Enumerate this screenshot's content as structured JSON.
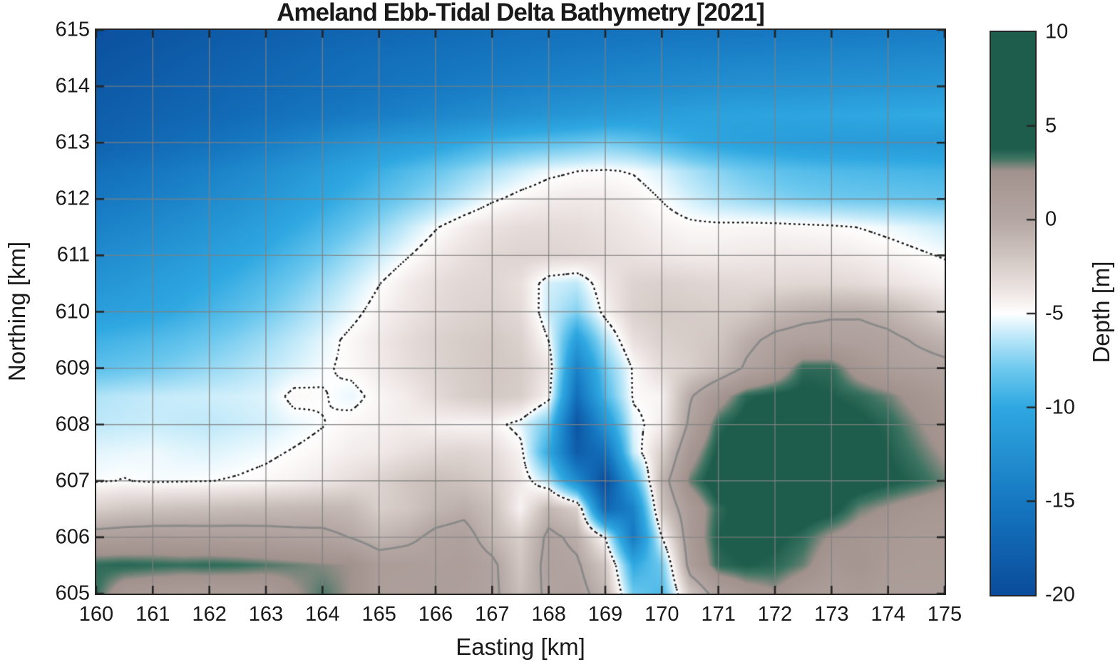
{
  "title": "Ameland Ebb-Tidal Delta Bathymetry [2021]",
  "axes": {
    "xlabel": "Easting [km]",
    "ylabel": "Northing [km]",
    "xlim": [
      160,
      175
    ],
    "ylim": [
      605,
      615
    ],
    "x_ticks": [
      160,
      161,
      162,
      163,
      164,
      165,
      166,
      167,
      168,
      169,
      170,
      171,
      172,
      173,
      174,
      175
    ],
    "y_ticks": [
      605,
      606,
      607,
      608,
      609,
      610,
      611,
      612,
      613,
      614,
      615
    ],
    "grid": "on"
  },
  "colorbar": {
    "label": "Depth [m]",
    "min": -20,
    "max": 10,
    "ticks": [
      10,
      5,
      0,
      -5,
      -10,
      -15,
      -20
    ]
  },
  "colors": {
    "background": "#ffffff",
    "grid_line": "#8a8a8a",
    "axis_line": "#242424",
    "deep_water": "#0a4c9b",
    "shallow_water": "#2fa8e1",
    "intertidal_flat": "#b4a7a3",
    "land_green": "#1e5d4b"
  },
  "chart_data": {
    "type": "heatmap",
    "title": "Ameland Ebb-Tidal Delta Bathymetry [2021]",
    "xlabel": "Easting [km]",
    "ylabel": "Northing [km]",
    "x_range_km": [
      160,
      175
    ],
    "y_range_km": [
      605,
      615
    ],
    "legend_position": "right-colorbar",
    "grid_x_start": 160,
    "grid_x_step": 0.5,
    "grid_y_start": 615,
    "grid_y_step": -0.5,
    "depth_grid_m": [
      [
        -19.5,
        -19.2,
        -19,
        -18.7,
        -18.4,
        -18.2,
        -17.9,
        -17.7,
        -17.4,
        -17.2,
        -17,
        -16.8,
        -16.6,
        -16.4,
        -16.2,
        -16,
        -15.9,
        -15.8,
        -15.7,
        -15.6,
        -15.5,
        -15.4,
        -15.3,
        -15.2,
        -15.1,
        -15,
        -14.9,
        -14.8,
        -14.7,
        -14.6,
        -14.5
      ],
      [
        -19,
        -18.7,
        -18.4,
        -18.1,
        -17.8,
        -17.5,
        -17.2,
        -16.9,
        -16.6,
        -16.3,
        -16,
        -15.8,
        -15.6,
        -15.4,
        -15.2,
        -15,
        -14.8,
        -14.6,
        -14.4,
        -14.2,
        -14,
        -13.9,
        -13.8,
        -13.7,
        -13.6,
        -13.5,
        -13.4,
        -13.3,
        -13.2,
        -13.1,
        -13
      ],
      [
        -18.5,
        -18.2,
        -17.9,
        -17.6,
        -17.3,
        -17,
        -16.7,
        -16.4,
        -16.1,
        -15.8,
        -15.5,
        -15.2,
        -14.9,
        -14.6,
        -14.3,
        -14,
        -13.7,
        -13.5,
        -13.3,
        -13.1,
        -12.9,
        -12.7,
        -12.5,
        -12.4,
        -12.3,
        -12.2,
        -12.1,
        -12,
        -11.9,
        -11.8,
        -11.7
      ],
      [
        -18,
        -17.7,
        -17.4,
        -17.1,
        -16.8,
        -16.4,
        -16,
        -15.6,
        -15.2,
        -14.8,
        -14.4,
        -14,
        -13.6,
        -13.2,
        -12.8,
        -12.4,
        -12,
        -11.7,
        -11.4,
        -11.2,
        -11,
        -10.8,
        -10.6,
        -10.5,
        -10.4,
        -10.3,
        -10.2,
        -10.1,
        -10,
        -9.9,
        -9.8
      ],
      [
        -17.5,
        -17.1,
        -16.7,
        -16.2,
        -15.7,
        -15.1,
        -14.5,
        -13.8,
        -13.1,
        -12.4,
        -11.7,
        -11.2,
        -10.7,
        -10,
        -9.3,
        -8.8,
        -8.5,
        -8.2,
        -7.8,
        -8.2,
        -9,
        -9.8,
        -10.4,
        -10.8,
        -11,
        -11.2,
        -11.3,
        -11.4,
        -11.4,
        -11.5,
        -11.5
      ],
      [
        -16,
        -15.6,
        -15.1,
        -14.6,
        -14,
        -13.4,
        -12.7,
        -12,
        -11.2,
        -10.4,
        -9.6,
        -8.9,
        -8.2,
        -7.4,
        -6.6,
        -5.9,
        -5.3,
        -5.02,
        -4.9,
        -5.1,
        -5.7,
        -6.6,
        -7.4,
        -8,
        -8.4,
        -8.7,
        -8.9,
        -9,
        -9.1,
        -9.2,
        -9.3
      ],
      [
        -15,
        -14.6,
        -14.2,
        -13.7,
        -13.1,
        -12.5,
        -11.8,
        -11,
        -10.2,
        -9.4,
        -8.6,
        -7.8,
        -7,
        -6.1,
        -5.2,
        -4.6,
        -4.2,
        -4,
        -4.1,
        -4.4,
        -5.05,
        -5.8,
        -6.5,
        -7,
        -7.4,
        -7.7,
        -7.9,
        -8,
        -8.1,
        -8.2,
        -8.3
      ],
      [
        -14,
        -13.6,
        -13.1,
        -12.6,
        -12,
        -11.4,
        -10.7,
        -9.9,
        -9.1,
        -8.2,
        -7.2,
        -6.1,
        -5.1,
        -4.2,
        -3.6,
        -3.3,
        -3.2,
        -3.3,
        -3.6,
        -4,
        -4.4,
        -4.7,
        -4.7,
        -4.6,
        -4.6,
        -4.7,
        -4.8,
        -5.03,
        -5.3,
        -5.6,
        -6
      ],
      [
        -13,
        -12.6,
        -12.1,
        -11.6,
        -11,
        -10.4,
        -9.7,
        -8.9,
        -8,
        -7,
        -6,
        -5.1,
        -4.2,
        -3.5,
        -3,
        -2.8,
        -2.8,
        -3,
        -3.3,
        -3.6,
        -3.9,
        -4.1,
        -4.1,
        -4,
        -3.9,
        -3.9,
        -4,
        -4.2,
        -4.5,
        -4.8,
        -5.1
      ],
      [
        -12,
        -11.6,
        -11.1,
        -10.6,
        -10,
        -9.4,
        -8.7,
        -7.9,
        -7,
        -6,
        -5.04,
        -4.1,
        -3.4,
        -3,
        -2.9,
        -3.5,
        -5.8,
        -6.2,
        -4,
        -2.8,
        -2.6,
        -2.8,
        -3,
        -3.1,
        -3.1,
        -3,
        -3,
        -3.2,
        -3.6,
        -4,
        -4.4
      ],
      [
        -11,
        -10.7,
        -10.3,
        -9.8,
        -9.2,
        -8.6,
        -7.9,
        -7.1,
        -6.2,
        -5.4,
        -4.5,
        -3.8,
        -3.2,
        -2.8,
        -2.6,
        -3.2,
        -6,
        -7.5,
        -4.5,
        -2.6,
        -2.2,
        -2.3,
        -2.4,
        -2.2,
        -1.2,
        -0.6,
        -0.3,
        -0.3,
        -0.8,
        -1.8,
        -3
      ],
      [
        -9.5,
        -9.2,
        -8.9,
        -8.5,
        -8,
        -7.5,
        -6.9,
        -6.2,
        -5.5,
        -4.7,
        -4,
        -3.3,
        -2.7,
        -2.3,
        -2.1,
        -2.6,
        -5.04,
        -11,
        -6.5,
        -3.5,
        -2.6,
        -2.3,
        -2,
        -0.5,
        0.5,
        0.8,
        0.8,
        0.8,
        0.5,
        -0.2,
        -0.8
      ],
      [
        -8.5,
        -8.2,
        -7.9,
        -7.5,
        -7.1,
        -6.7,
        -6.2,
        -5.7,
        -5.2,
        -4.7,
        -4.1,
        -3.4,
        -2.8,
        -2.3,
        -2,
        -2.3,
        -3.8,
        -14,
        -8,
        -4.8,
        -3.2,
        -2.5,
        -1.4,
        0.3,
        1.5,
        3.5,
        3.5,
        2,
        1.2,
        0.8,
        0.5
      ],
      [
        -6.5,
        -6.3,
        -6.1,
        -6,
        -5.9,
        -5.8,
        -5.6,
        -4.7,
        -4.9,
        -5.4,
        -4.6,
        -4.1,
        -3.2,
        -2.4,
        -2.1,
        -2.4,
        -4.5,
        -16,
        -9,
        -4.8,
        -4.5,
        -0.2,
        2,
        3.6,
        4,
        4,
        3.8,
        3.5,
        3,
        2.2,
        1.5
      ],
      [
        -6.2,
        -6.1,
        -6,
        -6.1,
        -6.2,
        -6,
        -5.8,
        -5.4,
        -5.05,
        -4.6,
        -4.4,
        -4.2,
        -4.4,
        -4.6,
        -4.5,
        -5.5,
        -8,
        -19,
        -12,
        -5.5,
        -4.2,
        0.5,
        3.5,
        4.2,
        4.5,
        4.5,
        4.3,
        4,
        3.6,
        2.8,
        2
      ],
      [
        -5.5,
        -5.4,
        -5.3,
        -5.5,
        -5.6,
        -5.4,
        -5.2,
        -4.9,
        -4.6,
        -4.2,
        -4,
        -3.5,
        -3,
        -2.8,
        -3.2,
        -4.5,
        -10,
        -18,
        -16,
        -6,
        -2.5,
        2,
        4,
        4.5,
        4.5,
        4.5,
        4.4,
        4.2,
        3.8,
        3.2,
        2.5
      ],
      [
        -5.1,
        -4.95,
        -5.15,
        -5.1,
        -5.02,
        -4.9,
        -4.7,
        -4.4,
        -4,
        -3.4,
        -2.8,
        -2,
        -1.5,
        -1.8,
        -2.5,
        -4,
        -6.5,
        -13,
        -20,
        -10,
        -1,
        3,
        4.5,
        4.6,
        4.6,
        4.6,
        4.5,
        4.4,
        4,
        3.6,
        3
      ],
      [
        -2.5,
        -2,
        -1.8,
        -1.6,
        -1.5,
        -1.3,
        -1.2,
        -1.1,
        -1,
        -1.2,
        -2.5,
        -2,
        -1,
        -0.5,
        -1.5,
        -4.5,
        -1,
        -2.5,
        -17,
        -14,
        -2,
        1.5,
        3.5,
        4.2,
        4.5,
        4.4,
        4.2,
        3,
        2.5,
        2,
        1.8
      ],
      [
        1,
        1.1,
        1.2,
        1.1,
        1,
        0.9,
        0.8,
        0.6,
        0.5,
        -0.05,
        -1,
        -0.5,
        0.5,
        0.8,
        -1,
        -2.5,
        0.5,
        -0.5,
        -5.04,
        -15,
        -5.04,
        1.5,
        3.8,
        4.2,
        4,
        3.5,
        2.5,
        2,
        1.8,
        1.5,
        1.5
      ],
      [
        3.5,
        3.6,
        3.5,
        3.4,
        3.5,
        3.4,
        3.2,
        3,
        2.8,
        2.6,
        1.2,
        1.2,
        1,
        1.2,
        0.5,
        -2,
        0.8,
        0.3,
        -2,
        -10,
        -8,
        1,
        3.5,
        3.8,
        3.6,
        3,
        1.8,
        2.2,
        1.5,
        1.4,
        1.4
      ],
      [
        3.4,
        1.8,
        1.5,
        1.3,
        1.2,
        1.3,
        1.5,
        2.5,
        3.2,
        2.6,
        1.2,
        1,
        1.2,
        1,
        0.5,
        -1.5,
        0.5,
        0.8,
        -1,
        -8,
        -9,
        -2,
        1,
        2,
        2.5,
        1.5,
        1.2,
        1.5,
        1.2,
        1.2,
        1.2
      ]
    ],
    "colormap_stops": [
      [
        -20,
        "#0a4c9b"
      ],
      [
        -15,
        "#1678c1"
      ],
      [
        -10,
        "#2fa8e1"
      ],
      [
        -8,
        "#6cc8ee"
      ],
      [
        -6,
        "#c8ecfa"
      ],
      [
        -5,
        "#ffffff"
      ],
      [
        -4,
        "#f0e9e7"
      ],
      [
        -2,
        "#d1c6c2"
      ],
      [
        0,
        "#b4a7a3"
      ],
      [
        2.6,
        "#a2928d"
      ],
      [
        3.3,
        "#3c7361"
      ],
      [
        3.8,
        "#1e5d4b"
      ],
      [
        10,
        "#1e5d4b"
      ]
    ],
    "contours": [
      {
        "level_m": -5,
        "line": "dotted",
        "color": "#141414"
      },
      {
        "level_m": 0,
        "line": "solid",
        "color": "#8a8a8a"
      }
    ]
  }
}
